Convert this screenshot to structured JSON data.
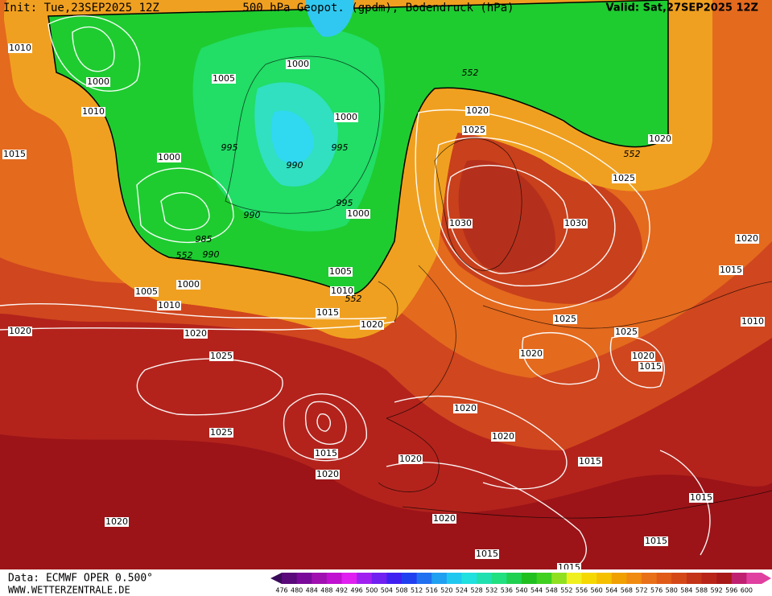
{
  "header": {
    "init": "Init: Tue,23SEP2025 12Z",
    "title": "500 hPa Geopot. (gpdm), Bodendruck (hPa)",
    "valid": "Valid: Sat,27SEP2025 12Z"
  },
  "footer": {
    "data": "Data: ECMWF OPER 0.500°",
    "site": "WWW.WETTERZENTRALE.DE"
  },
  "colorbar": {
    "labels": [
      476,
      480,
      484,
      488,
      492,
      496,
      500,
      504,
      508,
      512,
      516,
      520,
      524,
      528,
      532,
      536,
      540,
      544,
      548,
      552,
      556,
      560,
      564,
      568,
      572,
      576,
      580,
      584,
      588,
      592,
      596,
      600
    ]
  },
  "isobar_labels": [
    "1010",
    "1000",
    "1010",
    "1015",
    "1000",
    "1005",
    "1000",
    "1000",
    "995",
    "995",
    "990",
    "990",
    "995",
    "1000",
    "985",
    "990",
    "552",
    "1005",
    "1010",
    "552",
    "1000",
    "1005",
    "1010",
    "1015",
    "1020",
    "1020",
    "1020",
    "1025",
    "1025",
    "1015",
    "1020",
    "1020",
    "552",
    "1020",
    "1025",
    "552",
    "1020",
    "1025",
    "1030",
    "1030",
    "1020",
    "1015",
    "1010",
    "1025",
    "1025",
    "1020",
    "1020",
    "1015",
    "1020",
    "1020",
    "1020",
    "1015",
    "1015",
    "1020",
    "1015",
    "1015",
    "1015"
  ]
}
